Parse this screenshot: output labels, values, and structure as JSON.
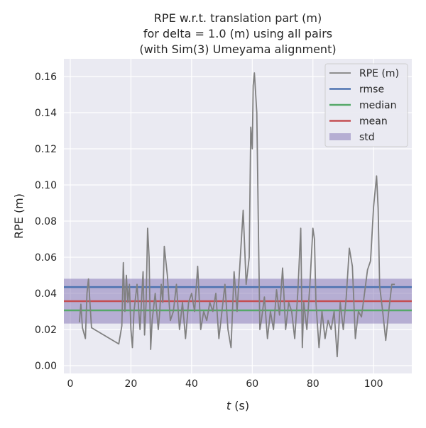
{
  "chart_data": {
    "type": "line",
    "title": [
      "RPE w.r.t. translation part (m)",
      "for delta = 1.0 (m) using all pairs",
      "(with Sim(3) Umeyama alignment)"
    ],
    "xlabel": "t (s)",
    "ylabel": "RPE (m)",
    "xlim": [
      -2.1,
      112.6
    ],
    "ylim": [
      -0.0043,
      0.1698
    ],
    "xticks": [
      0,
      20,
      40,
      60,
      80,
      100
    ],
    "yticks": [
      0.0,
      0.02,
      0.04,
      0.06,
      0.08,
      0.1,
      0.12,
      0.14,
      0.16
    ],
    "grid": true,
    "legend_placement": "top-right",
    "colors": {
      "rpe": "#808080",
      "rmse": "#4c72b0",
      "median": "#55a868",
      "mean": "#c44e52",
      "std": "#8172b3",
      "background": "#eaeaf2"
    },
    "legend": [
      "RPE (m)",
      "rmse",
      "median",
      "mean",
      "std"
    ],
    "stats": {
      "rmse": 0.0435,
      "median": 0.0306,
      "mean": 0.0357,
      "std": 0.0124
    },
    "series": [
      {
        "name": "RPE (m)",
        "x": [
          3,
          3.5,
          4,
          5,
          5.5,
          6,
          7,
          16,
          17,
          17.5,
          18,
          18.5,
          19,
          19.5,
          20,
          20.5,
          21,
          22,
          23,
          24,
          24.5,
          25,
          25.5,
          26,
          26.5,
          27,
          28,
          29,
          29.5,
          30,
          30.5,
          31,
          32,
          33,
          34,
          35,
          36,
          37,
          38,
          39,
          40,
          41,
          42,
          43,
          44,
          45,
          46,
          47,
          48,
          49,
          50,
          51,
          52,
          53,
          54,
          55,
          56,
          57,
          58,
          59,
          59.5,
          60,
          60.3,
          60.7,
          61.5,
          62,
          62.5,
          63,
          64,
          65,
          66,
          67,
          68,
          69,
          70,
          71,
          72,
          73,
          74,
          75,
          76,
          76.5,
          77,
          78,
          79,
          80,
          80.5,
          81,
          82,
          83,
          84,
          85,
          86,
          87,
          88,
          89,
          90,
          91,
          92,
          93,
          94,
          95,
          96,
          97,
          98,
          99,
          100,
          101,
          101.5,
          102,
          103,
          104,
          105,
          106,
          107
        ],
        "y": [
          0.024,
          0.034,
          0.021,
          0.015,
          0.04,
          0.048,
          0.021,
          0.012,
          0.022,
          0.057,
          0.03,
          0.05,
          0.035,
          0.045,
          0.02,
          0.01,
          0.03,
          0.045,
          0.02,
          0.052,
          0.017,
          0.035,
          0.076,
          0.06,
          0.009,
          0.025,
          0.04,
          0.02,
          0.03,
          0.045,
          0.035,
          0.066,
          0.05,
          0.025,
          0.03,
          0.045,
          0.02,
          0.035,
          0.015,
          0.035,
          0.04,
          0.03,
          0.055,
          0.02,
          0.03,
          0.025,
          0.035,
          0.03,
          0.04,
          0.015,
          0.03,
          0.045,
          0.02,
          0.01,
          0.052,
          0.03,
          0.058,
          0.086,
          0.045,
          0.06,
          0.132,
          0.12,
          0.155,
          0.162,
          0.14,
          0.08,
          0.02,
          0.025,
          0.038,
          0.015,
          0.03,
          0.02,
          0.042,
          0.028,
          0.054,
          0.02,
          0.035,
          0.03,
          0.015,
          0.04,
          0.076,
          0.01,
          0.035,
          0.02,
          0.045,
          0.076,
          0.07,
          0.035,
          0.01,
          0.03,
          0.015,
          0.025,
          0.02,
          0.03,
          0.005,
          0.035,
          0.02,
          0.038,
          0.065,
          0.055,
          0.015,
          0.03,
          0.027,
          0.04,
          0.053,
          0.058,
          0.088,
          0.105,
          0.087,
          0.044,
          0.03,
          0.014,
          0.03,
          0.045,
          0.045
        ]
      }
    ]
  }
}
